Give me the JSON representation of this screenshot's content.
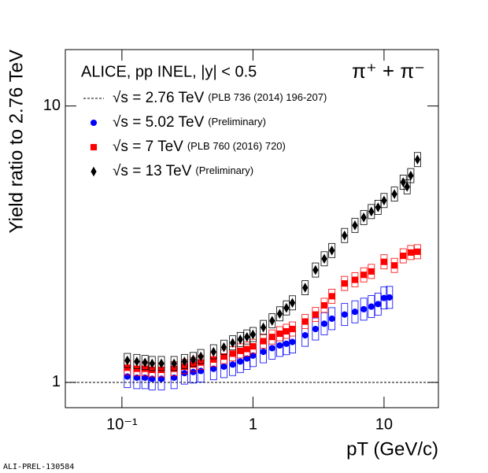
{
  "chart_data": {
    "type": "scatter",
    "title": "ALICE, pp INEL, |y| < 0.5",
    "particle": "π⁺ + π⁻",
    "xlabel": "pT (GeV/c)",
    "ylabel": "Yield ratio to 2.76 TeV",
    "watermark": "ALI-PREL-130584",
    "log_x": true,
    "log_y": true,
    "xlim": [
      0.037,
      26
    ],
    "ylim": [
      0.81,
      16
    ],
    "xticks": [
      {
        "value": 0.1,
        "label": "10⁻¹"
      },
      1,
      10
    ],
    "yticks": [
      1,
      10
    ],
    "series": [
      {
        "name": "√s = 2.76 TeV",
        "reference": "(PLB 736 (2014) 196-207)",
        "color": "#000000",
        "marker": "dash",
        "x": [
          0.037,
          26
        ],
        "values": [
          1,
          1
        ]
      },
      {
        "name": "√s = 5.02 TeV",
        "reference": "(Preliminary)",
        "color": "#0000ff",
        "marker": "circle",
        "x": [
          0.11,
          0.13,
          0.15,
          0.17,
          0.2,
          0.25,
          0.3,
          0.35,
          0.4,
          0.5,
          0.6,
          0.7,
          0.8,
          0.9,
          1,
          1.2,
          1.4,
          1.6,
          1.8,
          2,
          2.5,
          3,
          3.5,
          4,
          5,
          6,
          7,
          8,
          9,
          10,
          11
        ],
        "values": [
          1.05,
          1.04,
          1.04,
          1.03,
          1.03,
          1.04,
          1.08,
          1.09,
          1.1,
          1.12,
          1.14,
          1.16,
          1.19,
          1.22,
          1.25,
          1.29,
          1.33,
          1.36,
          1.38,
          1.4,
          1.48,
          1.56,
          1.63,
          1.7,
          1.76,
          1.8,
          1.84,
          1.88,
          1.92,
          2.02,
          2.03
        ]
      },
      {
        "name": "√s = 7 TeV",
        "reference": "(PLB 760 (2016) 720)",
        "color": "#ff0000",
        "marker": "square",
        "x": [
          0.11,
          0.13,
          0.15,
          0.17,
          0.2,
          0.25,
          0.3,
          0.35,
          0.4,
          0.5,
          0.6,
          0.7,
          0.8,
          0.9,
          1,
          1.2,
          1.4,
          1.6,
          1.8,
          2,
          2.5,
          3,
          3.5,
          4,
          5,
          6,
          7,
          8,
          10,
          12,
          14,
          16,
          18
        ],
        "values": [
          1.13,
          1.12,
          1.12,
          1.11,
          1.11,
          1.12,
          1.14,
          1.16,
          1.18,
          1.21,
          1.24,
          1.27,
          1.3,
          1.32,
          1.35,
          1.41,
          1.46,
          1.5,
          1.53,
          1.56,
          1.66,
          1.76,
          1.9,
          2.05,
          2.28,
          2.35,
          2.45,
          2.52,
          2.73,
          2.65,
          2.87,
          2.95,
          2.97
        ]
      },
      {
        "name": "√s = 13 TeV",
        "reference": "(Preliminary)",
        "color": "#000000",
        "marker": "diamond",
        "x": [
          0.11,
          0.13,
          0.15,
          0.17,
          0.2,
          0.25,
          0.3,
          0.35,
          0.4,
          0.5,
          0.6,
          0.7,
          0.8,
          0.9,
          1,
          1.2,
          1.4,
          1.6,
          1.8,
          2,
          2.5,
          3,
          3.5,
          4,
          5,
          6,
          7,
          8,
          9,
          10,
          12,
          14,
          15,
          16,
          18
        ],
        "values": [
          1.2,
          1.19,
          1.18,
          1.17,
          1.17,
          1.17,
          1.19,
          1.21,
          1.24,
          1.29,
          1.34,
          1.39,
          1.43,
          1.46,
          1.49,
          1.58,
          1.67,
          1.77,
          1.86,
          1.94,
          2.2,
          2.55,
          2.8,
          3.0,
          3.4,
          3.7,
          3.95,
          4.15,
          4.3,
          4.55,
          4.8,
          5.3,
          5.1,
          5.6,
          6.4
        ]
      }
    ]
  }
}
